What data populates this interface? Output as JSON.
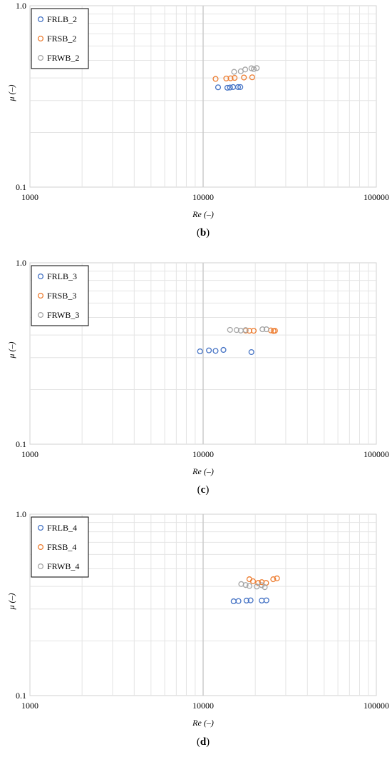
{
  "chart_data": [
    {
      "type": "scatter",
      "panel_label": "b",
      "xlabel": "Re (–)",
      "ylabel": "μ (–)",
      "x_scale": "log",
      "y_scale": "log",
      "xlim": [
        1000,
        100000
      ],
      "ylim": [
        0.1,
        1.0
      ],
      "x_ticks": [
        "1000",
        "10000",
        "100000"
      ],
      "y_ticks": [
        "0.1",
        "1.0"
      ],
      "grid": true,
      "legend_position": "top-left",
      "series": [
        {
          "name": "FRLB_2",
          "color": "#4472c4",
          "points": [
            [
              12200,
              0.355
            ],
            [
              13800,
              0.353
            ],
            [
              14300,
              0.354
            ],
            [
              14900,
              0.356
            ],
            [
              15900,
              0.356
            ],
            [
              16400,
              0.356
            ]
          ]
        },
        {
          "name": "FRSB_2",
          "color": "#ed7d31",
          "points": [
            [
              11800,
              0.395
            ],
            [
              13600,
              0.397
            ],
            [
              14400,
              0.398
            ],
            [
              15200,
              0.4
            ],
            [
              17200,
              0.402
            ],
            [
              19200,
              0.403
            ]
          ]
        },
        {
          "name": "FRWB_2",
          "color": "#a5a5a5",
          "points": [
            [
              15100,
              0.432
            ],
            [
              16500,
              0.435
            ],
            [
              17500,
              0.445
            ],
            [
              19000,
              0.452
            ],
            [
              19600,
              0.447
            ],
            [
              20400,
              0.453
            ]
          ]
        }
      ]
    },
    {
      "type": "scatter",
      "panel_label": "c",
      "xlabel": "Re (–)",
      "ylabel": "μ (–)",
      "x_scale": "log",
      "y_scale": "log",
      "xlim": [
        1000,
        100000
      ],
      "ylim": [
        0.1,
        1.0
      ],
      "x_ticks": [
        "1000",
        "10000",
        "100000"
      ],
      "y_ticks": [
        "0.1",
        "1.0"
      ],
      "grid": true,
      "legend_position": "top-left",
      "series": [
        {
          "name": "FRLB_3",
          "color": "#4472c4",
          "points": [
            [
              9600,
              0.325
            ],
            [
              10800,
              0.329
            ],
            [
              11800,
              0.327
            ],
            [
              13100,
              0.331
            ],
            [
              19000,
              0.322
            ]
          ]
        },
        {
          "name": "FRSB_3",
          "color": "#ed7d31",
          "points": [
            [
              17600,
              0.423
            ],
            [
              18500,
              0.422
            ],
            [
              19600,
              0.422
            ],
            [
              24600,
              0.424
            ],
            [
              25500,
              0.421
            ],
            [
              26000,
              0.422
            ]
          ]
        },
        {
          "name": "FRWB_3",
          "color": "#a5a5a5",
          "points": [
            [
              14300,
              0.427
            ],
            [
              15600,
              0.426
            ],
            [
              16500,
              0.423
            ],
            [
              17600,
              0.426
            ],
            [
              22000,
              0.43
            ],
            [
              23200,
              0.43
            ]
          ]
        }
      ]
    },
    {
      "type": "scatter",
      "panel_label": "d",
      "xlabel": "Re (–)",
      "ylabel": "μ (–)",
      "x_scale": "log",
      "y_scale": "log",
      "xlim": [
        1000,
        100000
      ],
      "ylim": [
        0.1,
        1.0
      ],
      "x_ticks": [
        "1000",
        "10000",
        "100000"
      ],
      "y_ticks": [
        "0.1",
        "1.0"
      ],
      "grid": true,
      "legend_position": "top-left",
      "series": [
        {
          "name": "FRLB_4",
          "color": "#4472c4",
          "points": [
            [
              15000,
              0.331
            ],
            [
              16000,
              0.332
            ],
            [
              17800,
              0.334
            ],
            [
              18800,
              0.335
            ],
            [
              21800,
              0.334
            ],
            [
              23200,
              0.335
            ]
          ]
        },
        {
          "name": "FRSB_4",
          "color": "#ed7d31",
          "points": [
            [
              18500,
              0.438
            ],
            [
              19400,
              0.427
            ],
            [
              20800,
              0.418
            ],
            [
              21800,
              0.422
            ],
            [
              23100,
              0.418
            ],
            [
              25400,
              0.438
            ],
            [
              26700,
              0.443
            ]
          ]
        },
        {
          "name": "FRWB_4",
          "color": "#a5a5a5",
          "points": [
            [
              16600,
              0.412
            ],
            [
              17600,
              0.407
            ],
            [
              18500,
              0.402
            ],
            [
              20400,
              0.399
            ],
            [
              21800,
              0.406
            ],
            [
              22700,
              0.396
            ]
          ]
        }
      ]
    }
  ]
}
